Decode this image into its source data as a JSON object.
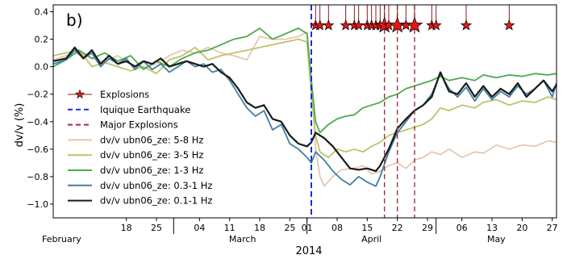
{
  "chart_data": {
    "type": "line",
    "panel_label": "b)",
    "ylabel": "dv/v (%)",
    "xlabel": "2014",
    "ylim": [
      -1.1,
      0.45
    ],
    "xlim": [
      0,
      145
    ],
    "yticks": [
      0.4,
      0.2,
      0.0,
      -0.2,
      -0.4,
      -0.6,
      -0.8,
      -1.0
    ],
    "ytick_labels": [
      "0.4",
      "0.2",
      "0.0",
      "−0.2",
      "−0.4",
      "−0.6",
      "−0.8",
      "−1.0"
    ],
    "day_ticks": [
      {
        "day": 17,
        "label": "18"
      },
      {
        "day": 24,
        "label": "25"
      },
      {
        "day": 34,
        "label": "04"
      },
      {
        "day": 41,
        "label": "11"
      },
      {
        "day": 48,
        "label": "18"
      },
      {
        "day": 55,
        "label": "25"
      },
      {
        "day": 59,
        "label": "01"
      },
      {
        "day": 66,
        "label": "08"
      },
      {
        "day": 73,
        "label": "15"
      },
      {
        "day": 80,
        "label": "22"
      },
      {
        "day": 87,
        "label": "29"
      },
      {
        "day": 95,
        "label": "06"
      },
      {
        "day": 102,
        "label": "13"
      },
      {
        "day": 109,
        "label": "20"
      },
      {
        "day": 116,
        "label": "27"
      }
    ],
    "month_separators": [
      28,
      59,
      89
    ],
    "months": [
      {
        "label": "February",
        "day": 0
      },
      {
        "label": "March",
        "day": 44
      },
      {
        "label": "April",
        "day": 74
      },
      {
        "label": "May",
        "day": 103
      }
    ],
    "legend_position": "left",
    "iquique_earthquake_day": 60,
    "major_explosions_days": [
      77,
      80,
      84
    ],
    "explosion_days": [
      61,
      62,
      64,
      68,
      70,
      71,
      73,
      74,
      75,
      76,
      77,
      78,
      80,
      82,
      84,
      88,
      89,
      96,
      106
    ],
    "legend": [
      {
        "label": "Explosions",
        "kind": "star",
        "color": "#c82020"
      },
      {
        "label": "Iquique Earthquake",
        "kind": "dash",
        "color": "#1f2fd6"
      },
      {
        "label": "Major Explosions",
        "kind": "dash",
        "color": "#a0303a"
      },
      {
        "label": "dv/v ubn06_ze: 5-8 Hz",
        "kind": "line",
        "color": "#e6c7b3"
      },
      {
        "label": "dv/v ubn06_ze: 3-5 Hz",
        "kind": "line",
        "color": "#bcc46a"
      },
      {
        "label": "dv/v ubn06_ze: 1-3 Hz",
        "kind": "line",
        "color": "#4ea84e"
      },
      {
        "label": "dv/v ubn06_ze: 0.3-1 Hz",
        "kind": "line",
        "color": "#3f7f9e"
      },
      {
        "label": "dv/v ubn06_ze: 0.1-1 Hz",
        "kind": "line",
        "color": "#1a1a1a"
      }
    ],
    "series": [
      {
        "name": "dv/v ubn06_ze: 5-8 Hz",
        "color": "#e6c7b3",
        "width": 1.8,
        "points": [
          [
            0,
            0.05
          ],
          [
            3,
            0.08
          ],
          [
            6,
            0.1
          ],
          [
            9,
            0.06
          ],
          [
            12,
            0.04
          ],
          [
            15,
            0.08
          ],
          [
            18,
            0.02
          ],
          [
            21,
            -0.01
          ],
          [
            24,
            0.02
          ],
          [
            27,
            0.08
          ],
          [
            30,
            0.12
          ],
          [
            33,
            0.1
          ],
          [
            36,
            0.14
          ],
          [
            39,
            0.1
          ],
          [
            42,
            0.08
          ],
          [
            45,
            0.05
          ],
          [
            48,
            0.22
          ],
          [
            51,
            0.2
          ],
          [
            54,
            0.2
          ],
          [
            57,
            0.22
          ],
          [
            59,
            0.25
          ],
          [
            60,
            -0.1
          ],
          [
            61,
            -0.6
          ],
          [
            62,
            -0.8
          ],
          [
            63,
            -0.87
          ],
          [
            65,
            -0.8
          ],
          [
            67,
            -0.75
          ],
          [
            70,
            -0.74
          ],
          [
            72,
            -0.72
          ],
          [
            74,
            -0.78
          ],
          [
            76,
            -0.76
          ],
          [
            78,
            -0.72
          ],
          [
            80,
            -0.7
          ],
          [
            82,
            -0.74
          ],
          [
            84,
            -0.68
          ],
          [
            86,
            -0.66
          ],
          [
            88,
            -0.62
          ],
          [
            90,
            -0.64
          ],
          [
            92,
            -0.6
          ],
          [
            95,
            -0.66
          ],
          [
            98,
            -0.62
          ],
          [
            100,
            -0.63
          ],
          [
            103,
            -0.57
          ],
          [
            106,
            -0.6
          ],
          [
            109,
            -0.57
          ],
          [
            112,
            -0.58
          ],
          [
            115,
            -0.54
          ],
          [
            117,
            -0.55
          ]
        ]
      },
      {
        "name": "dv/v ubn06_ze: 3-5 Hz",
        "color": "#bcc46a",
        "width": 1.8,
        "points": [
          [
            0,
            0.08
          ],
          [
            3,
            0.1
          ],
          [
            6,
            0.12
          ],
          [
            9,
            0.0
          ],
          [
            12,
            0.03
          ],
          [
            15,
            0.0
          ],
          [
            18,
            -0.03
          ],
          [
            21,
            0.0
          ],
          [
            24,
            -0.05
          ],
          [
            27,
            0.05
          ],
          [
            30,
            0.08
          ],
          [
            33,
            0.14
          ],
          [
            36,
            0.05
          ],
          [
            39,
            0.08
          ],
          [
            42,
            0.1
          ],
          [
            45,
            0.12
          ],
          [
            48,
            0.14
          ],
          [
            51,
            0.16
          ],
          [
            54,
            0.18
          ],
          [
            57,
            0.2
          ],
          [
            59,
            0.18
          ],
          [
            60,
            -0.2
          ],
          [
            61,
            -0.5
          ],
          [
            62,
            -0.62
          ],
          [
            64,
            -0.66
          ],
          [
            66,
            -0.6
          ],
          [
            68,
            -0.62
          ],
          [
            70,
            -0.6
          ],
          [
            72,
            -0.62
          ],
          [
            74,
            -0.58
          ],
          [
            76,
            -0.55
          ],
          [
            78,
            -0.5
          ],
          [
            80,
            -0.48
          ],
          [
            82,
            -0.46
          ],
          [
            84,
            -0.44
          ],
          [
            86,
            -0.42
          ],
          [
            88,
            -0.38
          ],
          [
            90,
            -0.3
          ],
          [
            92,
            -0.32
          ],
          [
            95,
            -0.28
          ],
          [
            98,
            -0.3
          ],
          [
            100,
            -0.26
          ],
          [
            103,
            -0.24
          ],
          [
            106,
            -0.28
          ],
          [
            109,
            -0.25
          ],
          [
            112,
            -0.26
          ],
          [
            115,
            -0.22
          ],
          [
            117,
            -0.24
          ]
        ]
      },
      {
        "name": "dv/v ubn06_ze: 1-3 Hz",
        "color": "#4ea84e",
        "width": 1.8,
        "points": [
          [
            0,
            0.0
          ],
          [
            3,
            0.05
          ],
          [
            6,
            0.12
          ],
          [
            9,
            0.06
          ],
          [
            12,
            0.1
          ],
          [
            15,
            0.04
          ],
          [
            18,
            0.08
          ],
          [
            21,
            -0.02
          ],
          [
            24,
            0.04
          ],
          [
            27,
            0.0
          ],
          [
            30,
            0.06
          ],
          [
            33,
            0.1
          ],
          [
            36,
            0.12
          ],
          [
            39,
            0.16
          ],
          [
            42,
            0.2
          ],
          [
            45,
            0.22
          ],
          [
            48,
            0.28
          ],
          [
            51,
            0.2
          ],
          [
            54,
            0.24
          ],
          [
            57,
            0.28
          ],
          [
            59,
            0.24
          ],
          [
            60,
            -0.1
          ],
          [
            61,
            -0.4
          ],
          [
            62,
            -0.48
          ],
          [
            64,
            -0.42
          ],
          [
            66,
            -0.38
          ],
          [
            68,
            -0.36
          ],
          [
            70,
            -0.35
          ],
          [
            72,
            -0.3
          ],
          [
            74,
            -0.28
          ],
          [
            76,
            -0.26
          ],
          [
            78,
            -0.22
          ],
          [
            80,
            -0.2
          ],
          [
            82,
            -0.16
          ],
          [
            84,
            -0.14
          ],
          [
            86,
            -0.12
          ],
          [
            88,
            -0.1
          ],
          [
            90,
            -0.07
          ],
          [
            92,
            -0.1
          ],
          [
            95,
            -0.08
          ],
          [
            98,
            -0.1
          ],
          [
            100,
            -0.06
          ],
          [
            103,
            -0.08
          ],
          [
            106,
            -0.06
          ],
          [
            109,
            -0.07
          ],
          [
            112,
            -0.05
          ],
          [
            115,
            -0.06
          ],
          [
            117,
            -0.05
          ]
        ]
      },
      {
        "name": "dv/v ubn06_ze: 0.3-1 Hz",
        "color": "#3f7f9e",
        "width": 1.8,
        "points": [
          [
            0,
            0.02
          ],
          [
            3,
            0.05
          ],
          [
            5,
            0.12
          ],
          [
            7,
            0.06
          ],
          [
            9,
            0.1
          ],
          [
            11,
            0.0
          ],
          [
            13,
            0.06
          ],
          [
            15,
            0.02
          ],
          [
            17,
            0.06
          ],
          [
            19,
            -0.02
          ],
          [
            21,
            0.04
          ],
          [
            23,
            -0.02
          ],
          [
            25,
            0.02
          ],
          [
            27,
            -0.04
          ],
          [
            29,
            0.0
          ],
          [
            31,
            0.04
          ],
          [
            33,
            0.0
          ],
          [
            35,
            0.02
          ],
          [
            37,
            -0.04
          ],
          [
            39,
            -0.02
          ],
          [
            41,
            -0.1
          ],
          [
            43,
            -0.2
          ],
          [
            45,
            -0.3
          ],
          [
            47,
            -0.36
          ],
          [
            49,
            -0.32
          ],
          [
            51,
            -0.46
          ],
          [
            53,
            -0.42
          ],
          [
            55,
            -0.56
          ],
          [
            57,
            -0.6
          ],
          [
            59,
            -0.66
          ],
          [
            60,
            -0.7
          ],
          [
            61,
            -0.62
          ],
          [
            63,
            -0.68
          ],
          [
            65,
            -0.76
          ],
          [
            67,
            -0.82
          ],
          [
            69,
            -0.86
          ],
          [
            71,
            -0.8
          ],
          [
            73,
            -0.84
          ],
          [
            75,
            -0.87
          ],
          [
            76,
            -0.8
          ],
          [
            78,
            -0.62
          ],
          [
            80,
            -0.48
          ],
          [
            82,
            -0.4
          ],
          [
            84,
            -0.32
          ],
          [
            86,
            -0.28
          ],
          [
            88,
            -0.2
          ],
          [
            90,
            -0.05
          ],
          [
            92,
            -0.16
          ],
          [
            94,
            -0.22
          ],
          [
            96,
            -0.15
          ],
          [
            98,
            -0.25
          ],
          [
            100,
            -0.16
          ],
          [
            102,
            -0.24
          ],
          [
            104,
            -0.18
          ],
          [
            106,
            -0.22
          ],
          [
            108,
            -0.14
          ],
          [
            110,
            -0.2
          ],
          [
            112,
            -0.16
          ],
          [
            114,
            -0.1
          ],
          [
            116,
            -0.22
          ],
          [
            117,
            -0.12
          ]
        ]
      },
      {
        "name": "dv/v ubn06_ze: 0.1-1 Hz",
        "color": "#1a1a1a",
        "width": 2.2,
        "points": [
          [
            0,
            0.04
          ],
          [
            3,
            0.06
          ],
          [
            5,
            0.14
          ],
          [
            7,
            0.06
          ],
          [
            9,
            0.12
          ],
          [
            11,
            0.02
          ],
          [
            13,
            0.08
          ],
          [
            15,
            0.02
          ],
          [
            17,
            0.04
          ],
          [
            19,
            0.0
          ],
          [
            21,
            0.04
          ],
          [
            23,
            0.02
          ],
          [
            25,
            0.06
          ],
          [
            27,
            0.0
          ],
          [
            29,
            0.02
          ],
          [
            31,
            0.04
          ],
          [
            33,
            0.02
          ],
          [
            35,
            0.0
          ],
          [
            37,
            0.02
          ],
          [
            39,
            -0.04
          ],
          [
            41,
            -0.08
          ],
          [
            43,
            -0.16
          ],
          [
            45,
            -0.26
          ],
          [
            47,
            -0.3
          ],
          [
            49,
            -0.28
          ],
          [
            51,
            -0.38
          ],
          [
            53,
            -0.4
          ],
          [
            55,
            -0.5
          ],
          [
            57,
            -0.56
          ],
          [
            59,
            -0.58
          ],
          [
            60,
            -0.55
          ],
          [
            61,
            -0.48
          ],
          [
            63,
            -0.52
          ],
          [
            65,
            -0.58
          ],
          [
            67,
            -0.66
          ],
          [
            69,
            -0.74
          ],
          [
            71,
            -0.75
          ],
          [
            73,
            -0.74
          ],
          [
            75,
            -0.76
          ],
          [
            76,
            -0.72
          ],
          [
            78,
            -0.6
          ],
          [
            80,
            -0.45
          ],
          [
            82,
            -0.38
          ],
          [
            84,
            -0.32
          ],
          [
            86,
            -0.28
          ],
          [
            88,
            -0.22
          ],
          [
            90,
            -0.04
          ],
          [
            92,
            -0.18
          ],
          [
            94,
            -0.2
          ],
          [
            96,
            -0.12
          ],
          [
            98,
            -0.22
          ],
          [
            100,
            -0.14
          ],
          [
            102,
            -0.22
          ],
          [
            104,
            -0.16
          ],
          [
            106,
            -0.2
          ],
          [
            108,
            -0.12
          ],
          [
            110,
            -0.22
          ],
          [
            112,
            -0.16
          ],
          [
            114,
            -0.1
          ],
          [
            116,
            -0.18
          ],
          [
            117,
            -0.13
          ]
        ]
      }
    ]
  }
}
